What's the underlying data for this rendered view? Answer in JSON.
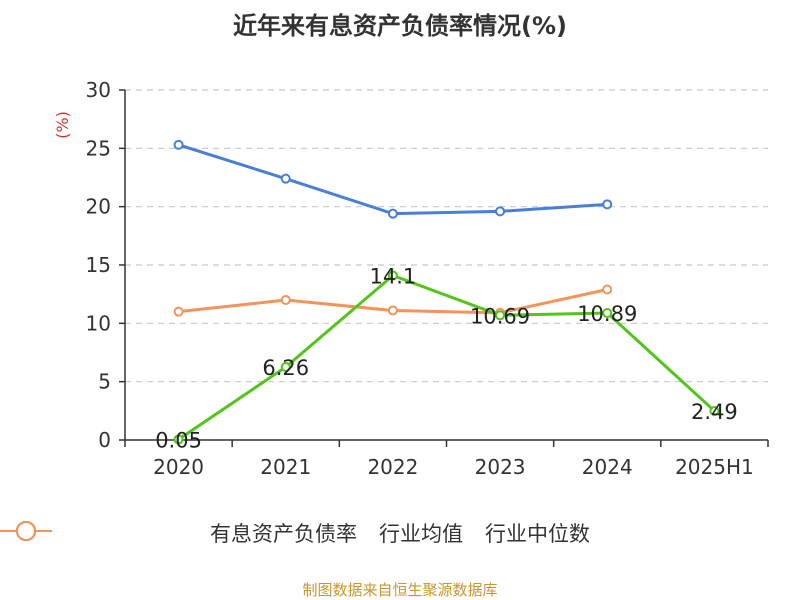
{
  "title": "近年来有息资产负债率情况(%)",
  "source": "制图数据来自恒生聚源数据库",
  "chart_data": {
    "type": "line",
    "title": "近年来有息资产负债率情况(%)",
    "ylabel": "(%)",
    "xlabel": "",
    "categories": [
      "2020",
      "2021",
      "2022",
      "2023",
      "2024",
      "2025H1"
    ],
    "ylim": [
      0,
      30
    ],
    "yticks": [
      0,
      5,
      10,
      15,
      20,
      25,
      30
    ],
    "grid": true,
    "legend_position": "bottom",
    "series": [
      {
        "name": "有息资产负债率",
        "color": "#52c41a",
        "values": [
          0.05,
          6.26,
          14.1,
          10.69,
          10.89,
          2.49
        ],
        "labels": [
          "0.05",
          "6.26",
          "14.1",
          "10.69",
          "10.89",
          "2.49"
        ]
      },
      {
        "name": "行业均值",
        "color": "#4a7fd9",
        "values": [
          25.3,
          22.4,
          19.4,
          19.6,
          20.2,
          null
        ]
      },
      {
        "name": "行业中位数",
        "color": "#f4935a",
        "values": [
          11.0,
          12.0,
          11.1,
          10.9,
          12.9,
          null
        ]
      }
    ]
  }
}
